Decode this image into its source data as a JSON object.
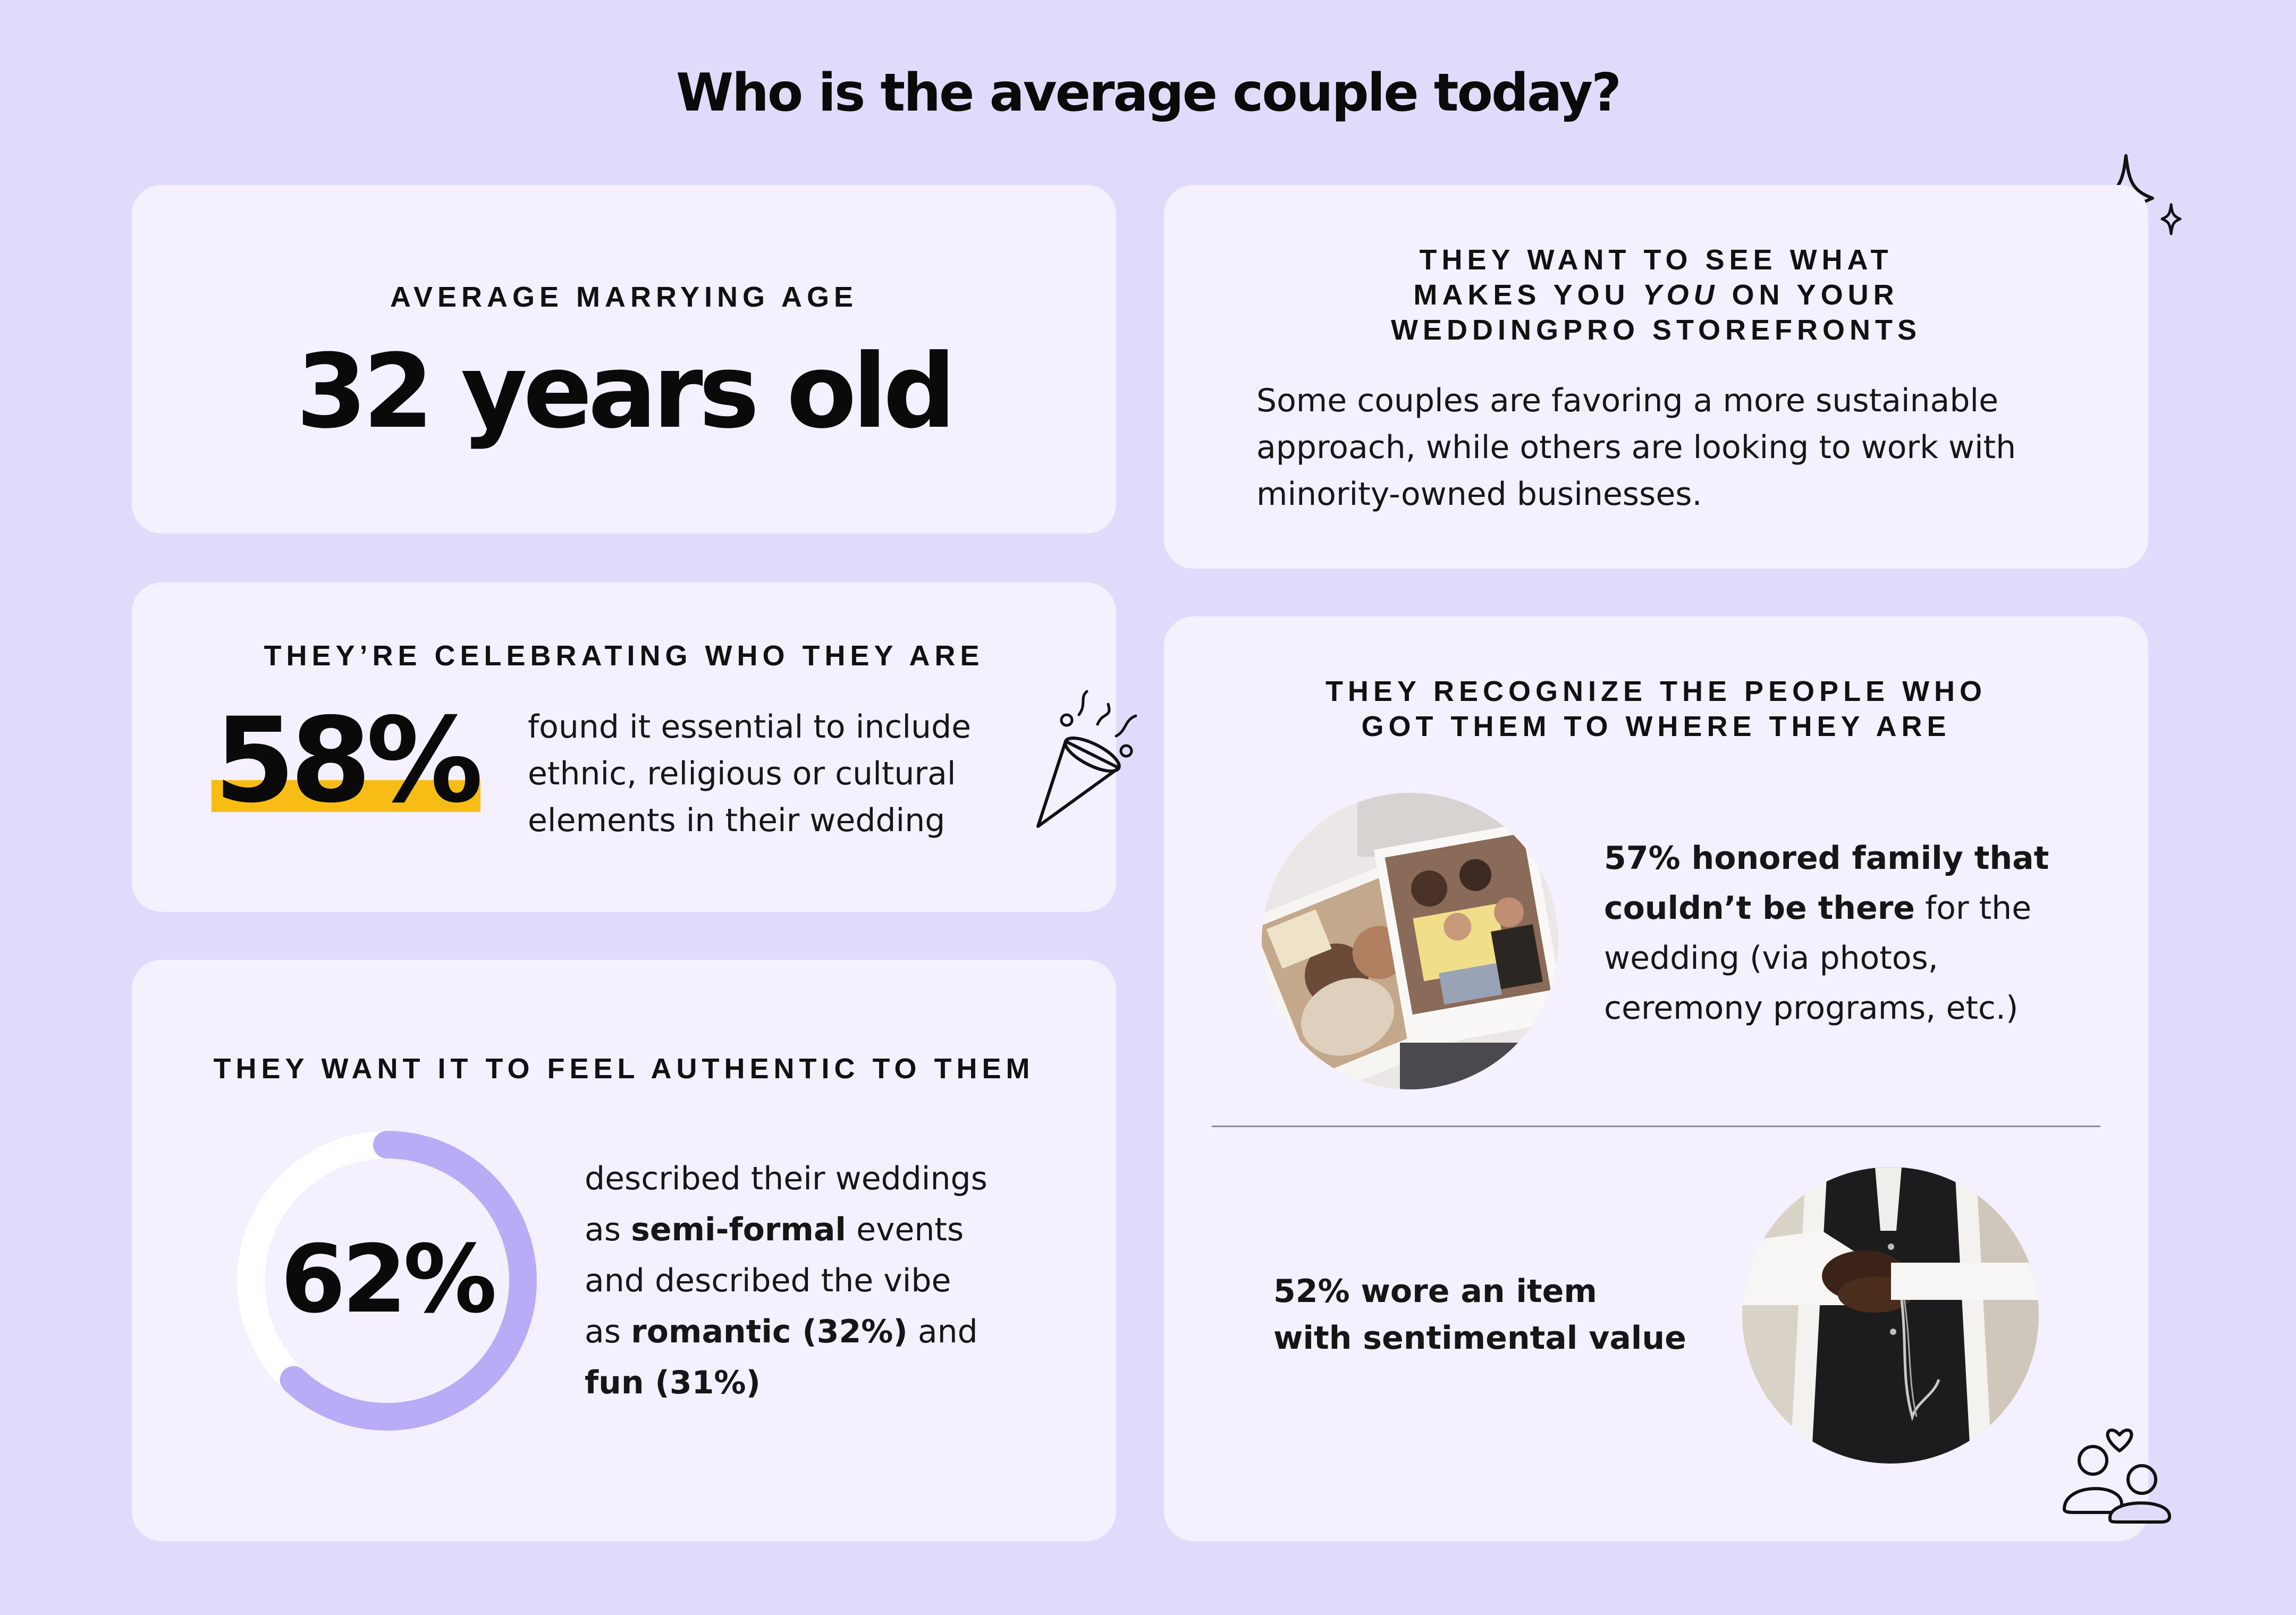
{
  "page_title": "Who is the average couple today?",
  "age_card": {
    "eyebrow": "AVERAGE MARRYING AGE",
    "value": "32 years old"
  },
  "celebrating_card": {
    "eyebrow": "THEY’RE CELEBRATING WHO THEY ARE",
    "stat": "58%",
    "text_line1": "found it essential to include",
    "text_line2": "ethnic, religious or cultural",
    "text_line3": "elements in their wedding"
  },
  "authentic_card": {
    "eyebrow": "THEY WANT IT TO FEEL AUTHENTIC TO THEM",
    "stat": "62%",
    "progress_fraction": 0.62,
    "line1": "described their weddings",
    "line2_pre": "as ",
    "line2_bold": "semi-formal",
    "line2_post": " events",
    "line3": "and described the vibe",
    "line4_pre": "as ",
    "line4_bold": "romantic (32%)",
    "line4_post": " and",
    "line5_bold": "fun (31%)"
  },
  "storefront_card": {
    "eyebrow_line1": "THEY WANT TO SEE WHAT",
    "eyebrow_line2_pre": "MAKES YOU ",
    "eyebrow_line2_em": "YOU",
    "eyebrow_line2_post": " ON YOUR",
    "eyebrow_line3": "WEDDINGPRO STOREFRONTS",
    "text_line1": "Some couples are favoring a more sustainable",
    "text_line2": "approach, while others are looking to work with",
    "text_line3": "minority-owned businesses."
  },
  "recognize_card": {
    "eyebrow_line1": "THEY RECOGNIZE THE PEOPLE WHO",
    "eyebrow_line2": "GOT THEM TO WHERE THEY ARE",
    "family_bold1": "57% honored family that",
    "family_bold2": "couldn’t be there",
    "family_text2": " for the",
    "family_text3": "wedding (via photos,",
    "family_text4": "ceremony programs, etc.)",
    "sentimental_line1": "52% wore an item",
    "sentimental_line2": "with sentimental value"
  },
  "colors": {
    "background": "#e1dbfb",
    "card": "#f4f0fe",
    "accent_yellow": "#f7bd14",
    "ring_purple": "#b8acf6"
  },
  "icons": [
    "sparkle-icon",
    "party-popper-icon",
    "couple-heart-icon"
  ]
}
